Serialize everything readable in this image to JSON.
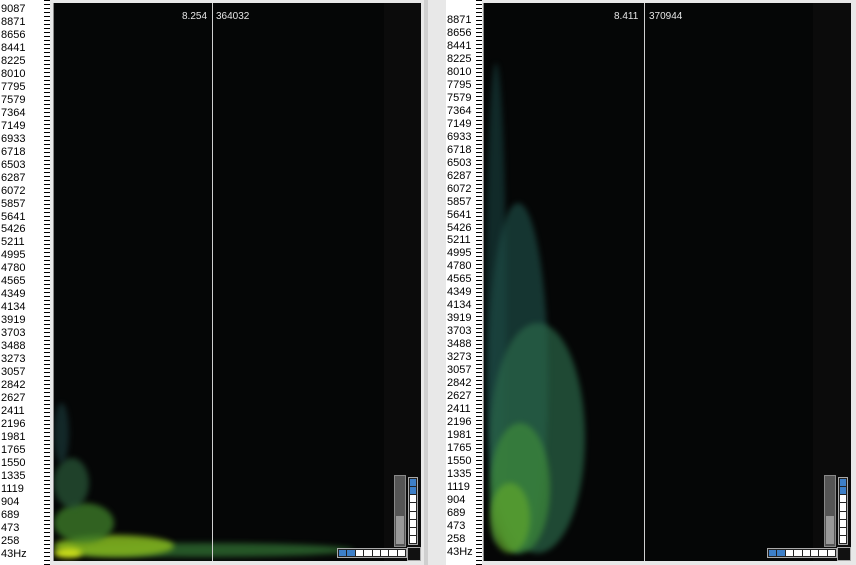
{
  "panels": [
    {
      "cursor_time": "8.254",
      "cursor_sample": "364032",
      "axis_labels": [
        "9087",
        "8871",
        "8656",
        "8441",
        "8225",
        "8010",
        "7795",
        "7579",
        "7364",
        "7149",
        "6933",
        "6718",
        "6503",
        "6287",
        "6072",
        "5857",
        "5641",
        "5426",
        "5211",
        "4995",
        "4780",
        "4565",
        "4349",
        "4134",
        "3919",
        "3703",
        "3488",
        "3273",
        "3057",
        "2842",
        "2627",
        "2411",
        "2196",
        "1981",
        "1765",
        "1550",
        "1335",
        "1119",
        "904",
        "689",
        "473",
        "258",
        "43Hz"
      ]
    },
    {
      "cursor_time": "8.411",
      "cursor_sample": "370944",
      "axis_labels": [
        "8871",
        "8656",
        "8441",
        "8225",
        "8010",
        "7795",
        "7579",
        "7364",
        "7149",
        "6933",
        "6718",
        "6503",
        "6287",
        "6072",
        "5857",
        "5641",
        "5426",
        "5211",
        "4995",
        "4780",
        "4565",
        "4349",
        "4134",
        "3919",
        "3703",
        "3488",
        "3273",
        "3057",
        "2842",
        "2627",
        "2411",
        "2196",
        "1981",
        "1765",
        "1550",
        "1335",
        "1119",
        "904",
        "689",
        "473",
        "258",
        "43Hz"
      ]
    }
  ],
  "colors": {
    "spectrum_background": "#050606",
    "energy_low": "#1d4a4a",
    "energy_high": "#b8d21e",
    "meter_on": "#3d7fc8"
  }
}
